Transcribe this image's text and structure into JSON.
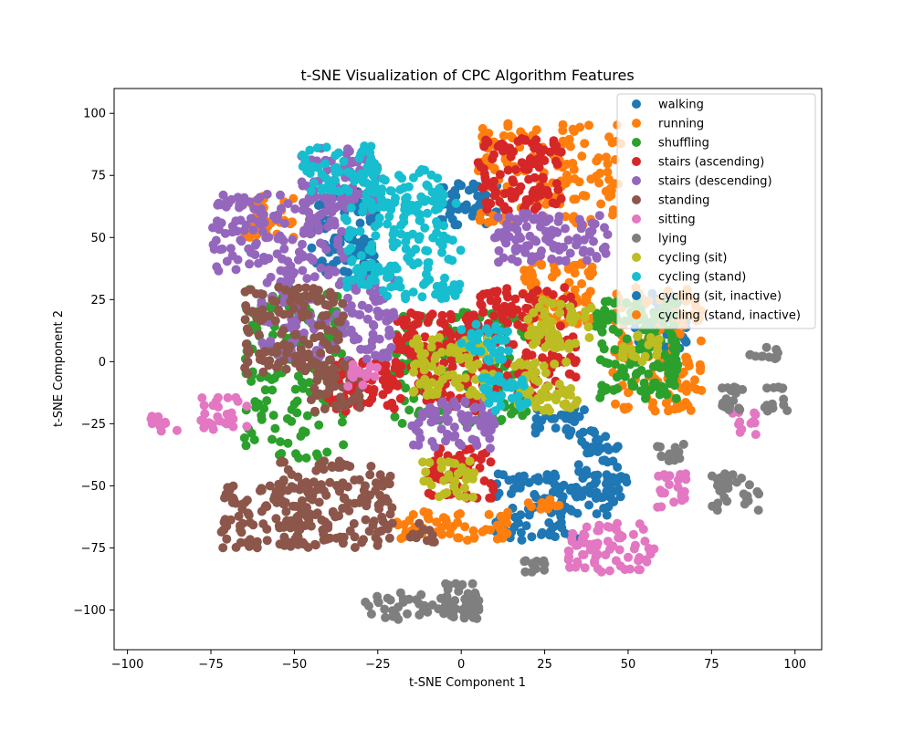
{
  "chart_data": {
    "type": "scatter",
    "title": "t-SNE Visualization of CPC Algorithm Features",
    "xlabel": "t-SNE Component 1",
    "ylabel": "t-SNE Component 2",
    "xlim": [
      -104,
      108
    ],
    "ylim": [
      -116,
      110
    ],
    "xticks": [
      -100,
      -75,
      -50,
      -25,
      0,
      25,
      50,
      75,
      100
    ],
    "yticks": [
      -100,
      -75,
      -50,
      -25,
      0,
      25,
      50,
      75,
      100
    ],
    "grid": false,
    "legend": "top-right",
    "series": [
      {
        "name": "walking",
        "color": "#1f77b4",
        "clusters": [
          {
            "x": [
              35,
              48
            ],
            "y": [
              -62,
              -30
            ]
          },
          {
            "x": [
              -8,
              12
            ],
            "y": [
              55,
              72
            ]
          },
          {
            "x": [
              10,
              35
            ],
            "y": [
              -72,
              -45
            ]
          },
          {
            "x": [
              52,
              68
            ],
            "y": [
              5,
              28
            ]
          },
          {
            "x": [
              -45,
              -25
            ],
            "y": [
              35,
              70
            ]
          },
          {
            "x": [
              22,
              42
            ],
            "y": [
              -30,
              -18
            ]
          }
        ]
      },
      {
        "name": "running",
        "color": "#ff7f0e",
        "clusters": [
          {
            "x": [
              5,
              48
            ],
            "y": [
              55,
              97
            ]
          },
          {
            "x": [
              -20,
              15
            ],
            "y": [
              -72,
              -60
            ]
          },
          {
            "x": [
              45,
              72
            ],
            "y": [
              -20,
              30
            ]
          },
          {
            "x": [
              -65,
              -50
            ],
            "y": [
              50,
              68
            ]
          },
          {
            "x": [
              18,
              40
            ],
            "y": [
              15,
              40
            ]
          }
        ]
      },
      {
        "name": "shuffling",
        "color": "#2ca02c",
        "clusters": [
          {
            "x": [
              -65,
              -35
            ],
            "y": [
              -40,
              30
            ]
          },
          {
            "x": [
              -20,
              20
            ],
            "y": [
              -25,
              20
            ]
          },
          {
            "x": [
              40,
              65
            ],
            "y": [
              -15,
              25
            ]
          }
        ]
      },
      {
        "name": "stairs (ascending)",
        "color": "#d62728",
        "clusters": [
          {
            "x": [
              -20,
              5
            ],
            "y": [
              -20,
              20
            ]
          },
          {
            "x": [
              -10,
              10
            ],
            "y": [
              -55,
              -35
            ]
          },
          {
            "x": [
              5,
              35
            ],
            "y": [
              -15,
              30
            ]
          },
          {
            "x": [
              5,
              30
            ],
            "y": [
              60,
              90
            ]
          },
          {
            "x": [
              -40,
              -20
            ],
            "y": [
              -20,
              0
            ]
          }
        ]
      },
      {
        "name": "stairs (descending)",
        "color": "#9467bd",
        "clusters": [
          {
            "x": [
              -75,
              -35
            ],
            "y": [
              35,
              68
            ]
          },
          {
            "x": [
              -48,
              -25
            ],
            "y": [
              60,
              86
            ]
          },
          {
            "x": [
              -60,
              -20
            ],
            "y": [
              0,
              35
            ]
          },
          {
            "x": [
              10,
              45
            ],
            "y": [
              40,
              60
            ]
          },
          {
            "x": [
              -15,
              10
            ],
            "y": [
              -35,
              -15
            ]
          }
        ]
      },
      {
        "name": "standing",
        "color": "#8c564b",
        "clusters": [
          {
            "x": [
              -72,
              -45
            ],
            "y": [
              -75,
              -50
            ]
          },
          {
            "x": [
              -55,
              -20
            ],
            "y": [
              -75,
              -40
            ]
          },
          {
            "x": [
              -65,
              -35
            ],
            "y": [
              -5,
              30
            ]
          },
          {
            "x": [
              -18,
              -8
            ],
            "y": [
              -73,
              -65
            ]
          },
          {
            "x": [
              -45,
              -30
            ],
            "y": [
              -20,
              0
            ]
          }
        ]
      },
      {
        "name": "sitting",
        "color": "#e377c2",
        "clusters": [
          {
            "x": [
              -93,
              -85
            ],
            "y": [
              -28,
              -22
            ]
          },
          {
            "x": [
              -78,
              -64
            ],
            "y": [
              -28,
              -14
            ]
          },
          {
            "x": [
              32,
              58
            ],
            "y": [
              -85,
              -65
            ]
          },
          {
            "x": [
              80,
              89
            ],
            "y": [
              -30,
              -20
            ]
          },
          {
            "x": [
              58,
              68
            ],
            "y": [
              -60,
              -45
            ]
          },
          {
            "x": [
              -35,
              -25
            ],
            "y": [
              -10,
              0
            ]
          }
        ]
      },
      {
        "name": "lying",
        "color": "#7f7f7f",
        "clusters": [
          {
            "x": [
              -30,
              5
            ],
            "y": [
              -104,
              -93
            ]
          },
          {
            "x": [
              -5,
              6
            ],
            "y": [
              -103,
              -88
            ]
          },
          {
            "x": [
              78,
              100
            ],
            "y": [
              -20,
              -10
            ]
          },
          {
            "x": [
              82,
              95
            ],
            "y": [
              1,
              6
            ]
          },
          {
            "x": [
              58,
              68
            ],
            "y": [
              -40,
              -33
            ]
          },
          {
            "x": [
              75,
              90
            ],
            "y": [
              -60,
              -45
            ]
          },
          {
            "x": [
              18,
              26
            ],
            "y": [
              -85,
              -80
            ]
          }
        ]
      },
      {
        "name": "cycling (sit)",
        "color": "#bcbd22",
        "clusters": [
          {
            "x": [
              -12,
              5
            ],
            "y": [
              -55,
              -40
            ]
          },
          {
            "x": [
              15,
              35
            ],
            "y": [
              -20,
              0
            ]
          },
          {
            "x": [
              -15,
              10
            ],
            "y": [
              -15,
              10
            ]
          },
          {
            "x": [
              20,
              40
            ],
            "y": [
              5,
              25
            ]
          },
          {
            "x": [
              48,
              60
            ],
            "y": [
              0,
              12
            ]
          }
        ]
      },
      {
        "name": "cycling (stand)",
        "color": "#17becf",
        "clusters": [
          {
            "x": [
              -35,
              0
            ],
            "y": [
              25,
              65
            ]
          },
          {
            "x": [
              -48,
              -25
            ],
            "y": [
              68,
              87
            ]
          },
          {
            "x": [
              -30,
              -5
            ],
            "y": [
              60,
              78
            ]
          },
          {
            "x": [
              0,
              15
            ],
            "y": [
              0,
              15
            ]
          },
          {
            "x": [
              5,
              20
            ],
            "y": [
              -20,
              -5
            ]
          }
        ]
      },
      {
        "name": "cycling (sit, inactive)",
        "color": "#1f77b4",
        "clusters": [
          {
            "x": [
              40,
              50
            ],
            "y": [
              -55,
              -45
            ]
          }
        ]
      },
      {
        "name": "cycling (stand, inactive)",
        "color": "#ff7f0e",
        "clusters": [
          {
            "x": [
              20,
              30
            ],
            "y": [
              -60,
              -55
            ]
          }
        ]
      }
    ]
  }
}
